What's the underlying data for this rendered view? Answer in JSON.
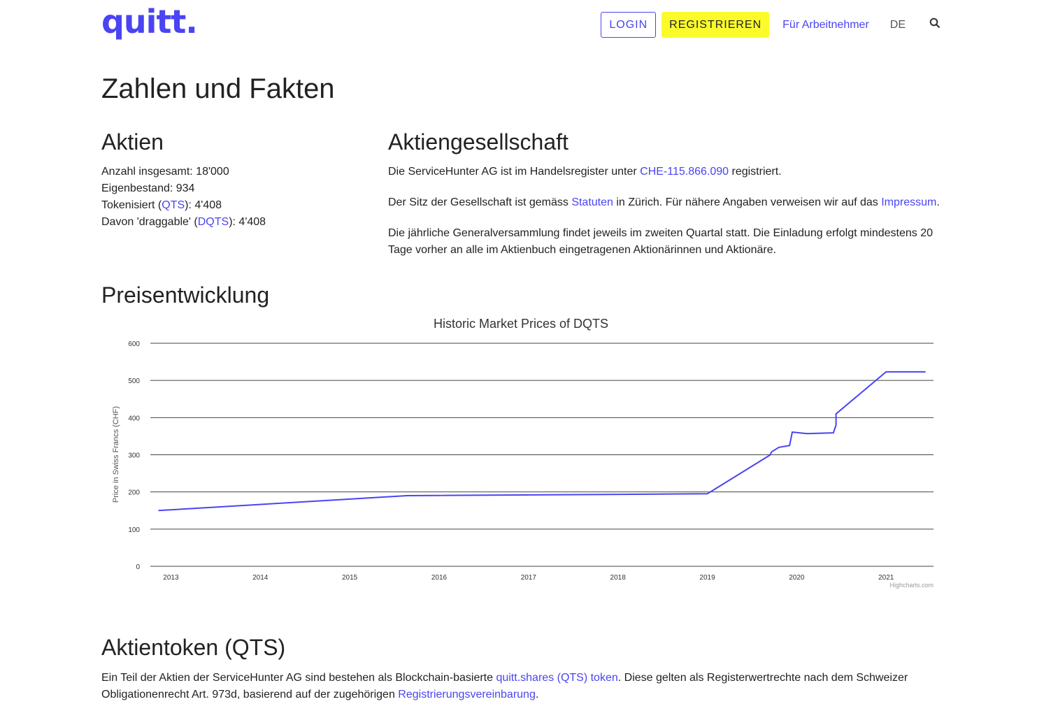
{
  "header": {
    "logo": "quitt.",
    "login": "LOGIN",
    "register": "REGISTRIEREN",
    "employees": "Für Arbeitnehmer",
    "lang": "DE",
    "search_icon": "search-icon"
  },
  "page_title": "Zahlen und Fakten",
  "aktien": {
    "title": "Aktien",
    "total": "Anzahl insgesamt: 18'000",
    "own": "Eigenbestand: 934",
    "tok_pre": "Tokenisiert (",
    "tok_link": "QTS",
    "tok_post": "): 4'408",
    "drag_pre": "Davon 'draggable' (",
    "drag_link": "DQTS",
    "drag_post": "): 4'408"
  },
  "ag": {
    "title": "Aktiengesellschaft",
    "p1_pre": "Die ServiceHunter AG ist im Handelsregister unter ",
    "p1_link": "CHE-115.866.090",
    "p1_post": " registriert.",
    "p2_pre": "Der Sitz der Gesellschaft ist gemäss ",
    "p2_link1": "Statuten",
    "p2_mid": " in Zürich. Für nähere Angaben verweisen wir auf das ",
    "p2_link2": "Impressum",
    "p2_post": ".",
    "p3": "Die jährliche Generalversammlung findet jeweils im zweiten Quartal statt. Die Einladung erfolgt mindestens 20 Tage vorher an alle im Aktienbuch eingetragenen Aktionärinnen und Aktionäre."
  },
  "preis": {
    "title": "Preisentwicklung"
  },
  "chart_data": {
    "type": "line",
    "title": "Historic Market Prices of DQTS",
    "ylabel": "Price in Swiss Francs (CHF)",
    "xlabel": "",
    "ylim": [
      0,
      600
    ],
    "yticks": [
      0,
      100,
      200,
      300,
      400,
      500,
      600
    ],
    "xticks": [
      "2013",
      "2014",
      "2015",
      "2016",
      "2017",
      "2018",
      "2019",
      "2020",
      "2021"
    ],
    "xlim": [
      2012.77,
      2021.53
    ],
    "grid": true,
    "color": "#4a44f2",
    "credit": "Highcharts.com",
    "series": [
      {
        "x": [
          2012.86,
          2015.64,
          2019.0,
          2019.7,
          2019.72,
          2019.8,
          2019.92,
          2019.95,
          2020.12,
          2020.41,
          2020.44,
          2020.44,
          2021.0,
          2021.44
        ],
        "y": [
          150,
          190,
          195,
          299,
          308,
          320,
          325,
          361,
          357,
          359,
          380,
          410,
          523,
          523
        ]
      }
    ]
  },
  "token": {
    "title": "Aktientoken (QTS)",
    "pre": "Ein Teil der Aktien der ServiceHunter AG sind bestehen als Blockchain-basierte ",
    "link1": "quitt.shares (QTS) token",
    "mid": ". Diese gelten als Registerwertrechte nach dem Schweizer Obligationenrecht Art. 973d, basierend auf der zugehörigen ",
    "link2": "Registrierungsvereinbarung",
    "post": "."
  }
}
